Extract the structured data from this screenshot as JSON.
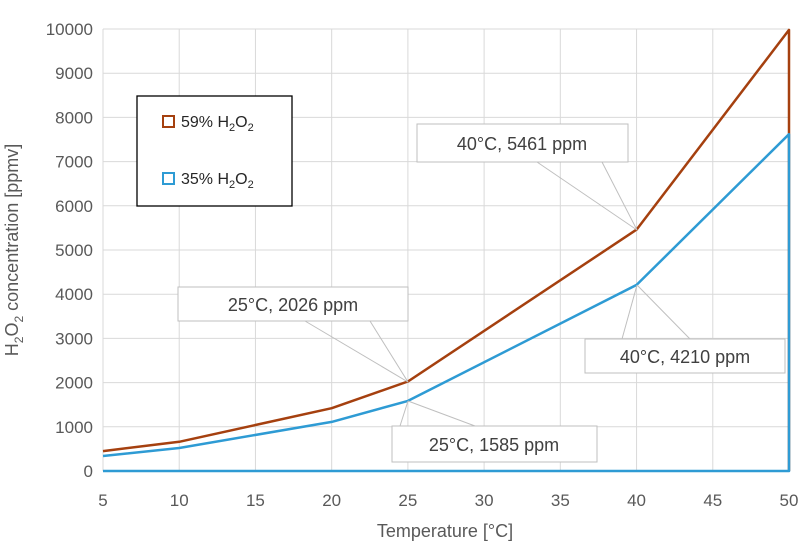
{
  "chart_data": {
    "type": "line",
    "xlabel": "Temperature [°C]",
    "ylabel": {
      "main": "H",
      "sub1": "2",
      "mid": "O",
      "sub2": "2",
      "rest": " concentration [ppmv]"
    },
    "xlim": [
      5,
      50
    ],
    "ylim": [
      0,
      10000
    ],
    "xticks": [
      5,
      10,
      15,
      20,
      25,
      30,
      35,
      40,
      45,
      50
    ],
    "yticks": [
      0,
      1000,
      2000,
      3000,
      4000,
      5000,
      6000,
      7000,
      8000,
      9000,
      10000
    ],
    "grid": true,
    "legend_position": "upper-left",
    "series": [
      {
        "name": "59% H2O2",
        "label": {
          "pct": "59% H",
          "sub1": "2",
          "mid": "O",
          "sub2": "2"
        },
        "color": "#a5400f",
        "x": [
          5,
          10,
          20,
          25,
          40,
          50
        ],
        "y": [
          450,
          660,
          1420,
          2026,
          5461,
          9980
        ]
      },
      {
        "name": "35% H2O2",
        "label": {
          "pct": "35% H",
          "sub1": "2",
          "mid": "O",
          "sub2": "2"
        },
        "color": "#2e9bd4",
        "x": [
          5,
          10,
          20,
          25,
          40,
          50
        ],
        "y": [
          340,
          520,
          1110,
          1585,
          4210,
          7620
        ]
      }
    ],
    "annotations": [
      {
        "text": "40°C, 5461 ppm",
        "x": 40,
        "y": 5461
      },
      {
        "text": "25°C, 2026 ppm",
        "x": 25,
        "y": 2026
      },
      {
        "text": "40°C, 4210 ppm",
        "x": 40,
        "y": 4210
      },
      {
        "text": "25°C, 1585 ppm",
        "x": 25,
        "y": 1585
      }
    ]
  }
}
